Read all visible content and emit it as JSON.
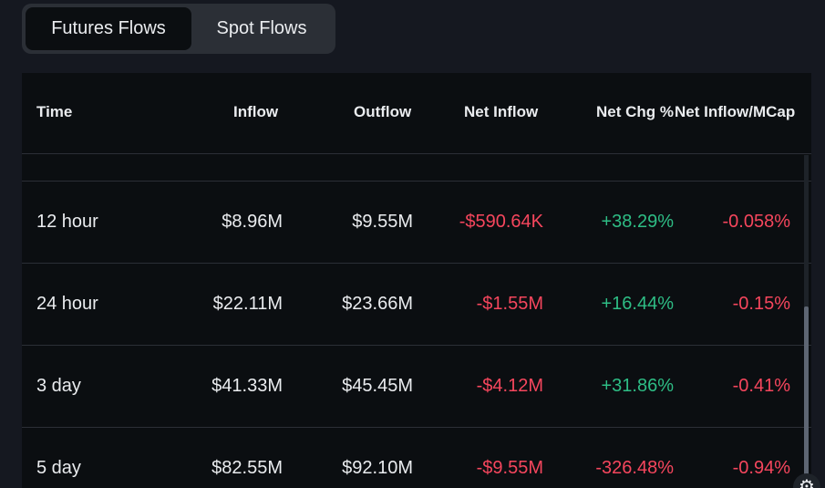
{
  "tabs": [
    {
      "label": "Futures Flows",
      "active": true
    },
    {
      "label": "Spot Flows",
      "active": false
    }
  ],
  "columns": [
    "Time",
    "Inflow",
    "Outflow",
    "Net Inflow",
    "Net Chg %",
    "Net Inflow/MCap"
  ],
  "rows": [
    {
      "time": "12 hour",
      "inflow": "$8.96M",
      "outflow": "$9.55M",
      "net_inflow": "-$590.64K",
      "net_chg": "+38.29%",
      "net_inflow_mcap": "-0.058%"
    },
    {
      "time": "24 hour",
      "inflow": "$22.11M",
      "outflow": "$23.66M",
      "net_inflow": "-$1.55M",
      "net_chg": "+16.44%",
      "net_inflow_mcap": "-0.15%"
    },
    {
      "time": "3 day",
      "inflow": "$41.33M",
      "outflow": "$45.45M",
      "net_inflow": "-$4.12M",
      "net_chg": "+31.86%",
      "net_inflow_mcap": "-0.41%"
    },
    {
      "time": "5 day",
      "inflow": "$82.55M",
      "outflow": "$92.10M",
      "net_inflow": "-$9.55M",
      "net_chg": "-326.48%",
      "net_inflow_mcap": "-0.94%"
    }
  ],
  "colors": {
    "positive": "#2ebd85",
    "negative": "#f6465d",
    "background": "#0b0e11",
    "tab_bg": "#2b2f36"
  },
  "icons": {
    "settings": "gear-icon"
  }
}
